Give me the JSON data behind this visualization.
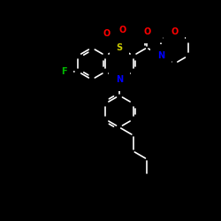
{
  "bg_color": "#000000",
  "bond_color": "#ffffff",
  "atom_colors": {
    "S": "#cccc00",
    "O": "#ff0000",
    "N": "#0000ff",
    "F": "#00bb00",
    "C": "#ffffff"
  },
  "figsize": [
    2.5,
    2.5
  ],
  "dpi": 100
}
